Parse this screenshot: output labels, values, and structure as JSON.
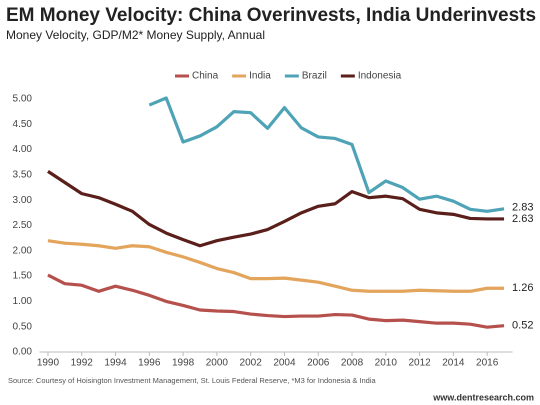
{
  "chart_data": {
    "type": "line",
    "title": "EM Money Velocity: China Overinvests, India Underinvests",
    "subtitle": "Money Velocity, GDP/M2* Money Supply, Annual",
    "source": "Source: Courtesy of Hoisington Investment Management, St. Louis Federal Reserve, *M3 for Indonesia & India",
    "website": "www.dentresearch.com",
    "x": [
      1990,
      1991,
      1992,
      1993,
      1994,
      1995,
      1996,
      1997,
      1998,
      1999,
      2000,
      2001,
      2002,
      2003,
      2004,
      2005,
      2006,
      2007,
      2008,
      2009,
      2010,
      2011,
      2012,
      2013,
      2014,
      2015,
      2016,
      2017
    ],
    "xlim": [
      1989.5,
      2017.5
    ],
    "xticks": [
      1990,
      1992,
      1994,
      1996,
      1998,
      2000,
      2002,
      2004,
      2006,
      2008,
      2010,
      2012,
      2014,
      2016
    ],
    "ylim": [
      0,
      5
    ],
    "yticks": [
      {
        "value": 0,
        "label": "0.00"
      },
      {
        "value": 0.5,
        "label": "0.50"
      },
      {
        "value": 1,
        "label": "1.00"
      },
      {
        "value": 1.5,
        "label": "1.50"
      },
      {
        "value": 2,
        "label": "2.00"
      },
      {
        "value": 2.5,
        "label": "2.50"
      },
      {
        "value": 3,
        "label": "3.00"
      },
      {
        "value": 3.5,
        "label": "3.50"
      },
      {
        "value": 4,
        "label": "4.00"
      },
      {
        "value": 4.5,
        "label": "4.50"
      },
      {
        "value": 5,
        "label": "5.00"
      }
    ],
    "grid": false,
    "series": [
      {
        "name": "China",
        "color": "#b5504c",
        "values": [
          1.52,
          1.35,
          1.32,
          1.2,
          1.3,
          1.22,
          1.12,
          1.0,
          0.92,
          0.83,
          0.81,
          0.8,
          0.75,
          0.72,
          0.7,
          0.71,
          0.71,
          0.74,
          0.73,
          0.65,
          0.62,
          0.63,
          0.6,
          0.57,
          0.57,
          0.55,
          0.49,
          0.52
        ]
      },
      {
        "name": "India",
        "color": "#e3a45c",
        "values": [
          2.2,
          2.15,
          2.13,
          2.1,
          2.05,
          2.1,
          2.08,
          1.97,
          1.88,
          1.77,
          1.65,
          1.57,
          1.45,
          1.45,
          1.46,
          1.42,
          1.38,
          1.3,
          1.22,
          1.2,
          1.2,
          1.2,
          1.22,
          1.21,
          1.2,
          1.2,
          1.26,
          1.26
        ]
      },
      {
        "name": "Brazil",
        "color": "#4ea3b6",
        "values": [
          null,
          null,
          null,
          null,
          null,
          null,
          4.88,
          5.02,
          4.15,
          4.27,
          4.45,
          4.75,
          4.73,
          4.42,
          4.83,
          4.43,
          4.25,
          4.22,
          4.1,
          3.15,
          3.38,
          3.25,
          3.02,
          3.08,
          2.98,
          2.82,
          2.78,
          2.83
        ]
      },
      {
        "name": "Indonesia",
        "color": "#5a1f1a",
        "values": [
          3.57,
          3.35,
          3.13,
          3.05,
          2.92,
          2.78,
          2.52,
          2.35,
          2.22,
          2.1,
          2.2,
          2.27,
          2.33,
          2.42,
          2.58,
          2.75,
          2.88,
          2.93,
          3.17,
          3.05,
          3.08,
          3.03,
          2.82,
          2.75,
          2.72,
          2.64,
          2.63,
          2.63
        ]
      }
    ]
  }
}
